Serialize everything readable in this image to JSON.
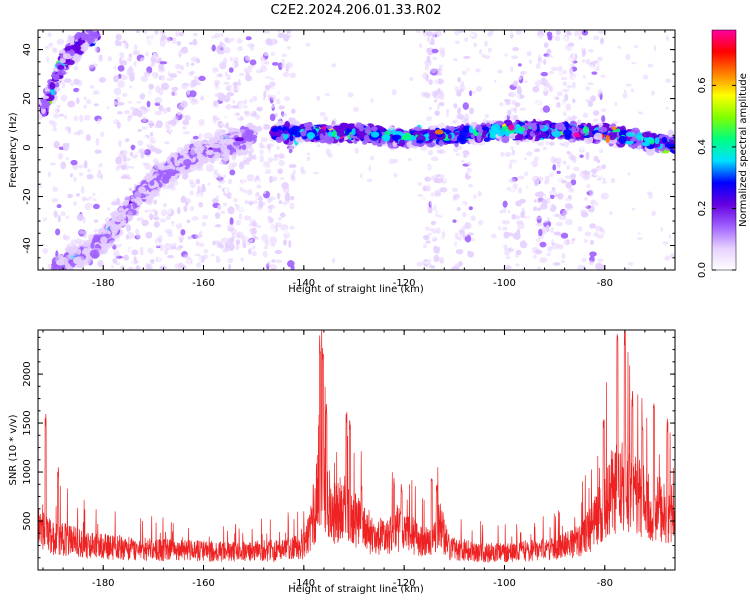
{
  "title": "C2E2.2024.206.01.33.R02",
  "chart_data": [
    {
      "type": "heatmap",
      "xlabel": "Height of straight line (km)",
      "ylabel": "Frequency (Hz)",
      "xlim": [
        -193,
        -66
      ],
      "ylim": [
        -50,
        48
      ],
      "x_ticks": [
        -180,
        -160,
        -140,
        -120,
        -100,
        -80
      ],
      "y_ticks": [
        -40,
        -20,
        0,
        20,
        40
      ],
      "colorbar": {
        "label": "Normalized spectral amplitude",
        "range": [
          0,
          0.78
        ],
        "ticks": [
          "0.0",
          "0.2",
          "0.4",
          "0.6"
        ],
        "colors": [
          "#ffffff",
          "#e6d0ff",
          "#a060ff",
          "#6600e0",
          "#0000ff",
          "#00e0ff",
          "#00ff80",
          "#80ff00",
          "#ffff00",
          "#ff8000",
          "#ff0000",
          "#ff00a0"
        ]
      },
      "features": [
        {
          "name": "",
          "points": [
            [
              -192,
              15
            ],
            [
              -188,
              35
            ],
            [
              -184,
              44
            ],
            [
              -181,
              48
            ]
          ],
          "amplitude": 0.18
        },
        {
          "name": "",
          "points": [
            [
              -190,
              -50
            ],
            [
              -180,
              -38
            ],
            [
              -172,
              -18
            ],
            [
              -166,
              -8
            ],
            [
              -160,
              -2
            ],
            [
              -150,
              5
            ]
          ],
          "amplitude": 0.12
        },
        {
          "name": "",
          "points": [
            [
              -146,
              6
            ],
            [
              -130,
              6
            ],
            [
              -120,
              4
            ],
            [
              -110,
              5
            ],
            [
              -100,
              7
            ],
            [
              -90,
              7
            ],
            [
              -80,
              6
            ],
            [
              -70,
              2
            ],
            [
              -66,
              1
            ]
          ],
          "amplitude": 0.3
        }
      ]
    },
    {
      "type": "line",
      "xlabel": "Height of straight line (km)",
      "ylabel": "SNR (10 * v/v)",
      "xlim": [
        -193,
        -66
      ],
      "ylim": [
        0,
        2450
      ],
      "x_ticks": [
        -180,
        -160,
        -140,
        -120,
        -100,
        -80
      ],
      "y_ticks": [
        500,
        1000,
        1500,
        2000
      ],
      "color": "#ee2222",
      "envelope": [
        {
          "x": -193,
          "y": 520
        },
        {
          "x": -190,
          "y": 420
        },
        {
          "x": -187,
          "y": 380
        },
        {
          "x": -184,
          "y": 330
        },
        {
          "x": -180,
          "y": 300
        },
        {
          "x": -175,
          "y": 280
        },
        {
          "x": -170,
          "y": 260
        },
        {
          "x": -165,
          "y": 250
        },
        {
          "x": -160,
          "y": 240
        },
        {
          "x": -155,
          "y": 230
        },
        {
          "x": -150,
          "y": 240
        },
        {
          "x": -145,
          "y": 250
        },
        {
          "x": -140,
          "y": 300
        },
        {
          "x": -138,
          "y": 650
        },
        {
          "x": -136.5,
          "y": 1300
        },
        {
          "x": -135,
          "y": 700
        },
        {
          "x": -132,
          "y": 800
        },
        {
          "x": -130,
          "y": 650
        },
        {
          "x": -127,
          "y": 450
        },
        {
          "x": -124,
          "y": 420
        },
        {
          "x": -121,
          "y": 520
        },
        {
          "x": -118,
          "y": 430
        },
        {
          "x": -115,
          "y": 330
        },
        {
          "x": -113,
          "y": 600
        },
        {
          "x": -111,
          "y": 280
        },
        {
          "x": -105,
          "y": 230
        },
        {
          "x": -100,
          "y": 220
        },
        {
          "x": -95,
          "y": 250
        },
        {
          "x": -90,
          "y": 280
        },
        {
          "x": -86,
          "y": 340
        },
        {
          "x": -83,
          "y": 500
        },
        {
          "x": -80,
          "y": 900
        },
        {
          "x": -77,
          "y": 1100
        },
        {
          "x": -74,
          "y": 950
        },
        {
          "x": -71,
          "y": 800
        },
        {
          "x": -68,
          "y": 750
        },
        {
          "x": -66,
          "y": 700
        }
      ],
      "peaks": [
        {
          "x": -191.5,
          "y": 1600
        },
        {
          "x": -189,
          "y": 1050
        },
        {
          "x": -136.8,
          "y": 2450
        },
        {
          "x": -136.2,
          "y": 2300
        },
        {
          "x": -135.5,
          "y": 1700
        },
        {
          "x": -131.5,
          "y": 1650
        },
        {
          "x": -130.8,
          "y": 1550
        },
        {
          "x": -128.5,
          "y": 900
        },
        {
          "x": -122,
          "y": 950
        },
        {
          "x": -120.5,
          "y": 880
        },
        {
          "x": -114.5,
          "y": 1000
        },
        {
          "x": -113.5,
          "y": 870
        },
        {
          "x": -80.2,
          "y": 1550
        },
        {
          "x": -77.5,
          "y": 2450
        },
        {
          "x": -76,
          "y": 2450
        },
        {
          "x": -74.5,
          "y": 1850
        },
        {
          "x": -72.5,
          "y": 1500
        },
        {
          "x": -70.2,
          "y": 1700
        },
        {
          "x": -67.5,
          "y": 1550
        }
      ]
    }
  ]
}
